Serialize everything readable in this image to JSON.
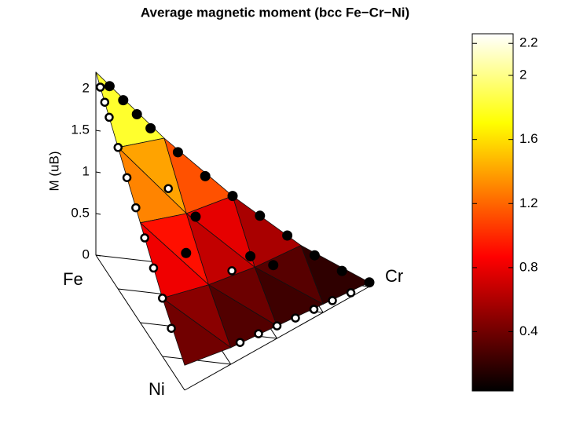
{
  "chart_data": {
    "type": "surface3d",
    "title": "Average magnetic moment (bcc Fe−Cr−Ni)",
    "zlabel": "M (uB)",
    "corner_labels": [
      "Fe",
      "Cr",
      "Ni"
    ],
    "zlim": [
      0,
      2.2
    ],
    "zticks": [
      0,
      0.5,
      1,
      1.5,
      2
    ],
    "clim": [
      0.03,
      2.26
    ],
    "cticks": [
      0.4,
      0.8,
      1.2,
      1.6,
      2,
      2.2
    ],
    "colormap": "hot",
    "surface": {
      "cr": [
        0,
        0.25,
        0.5,
        0.75,
        1
      ],
      "ni": [
        0,
        0.25,
        0.5,
        0.75,
        1
      ],
      "M": [
        [
          2.2,
          1.5,
          0.9,
          0.4,
          0.05
        ],
        [
          1.7,
          1.0,
          0.45,
          0.1
        ],
        [
          1.2,
          0.55,
          0.15
        ],
        [
          0.7,
          0.2
        ],
        [
          0.3
        ]
      ]
    },
    "points_filled": {
      "color": "#000000",
      "edge": "#000000",
      "values": [
        [
          0.05,
          0,
          2.05
        ],
        [
          0.1,
          0,
          1.9
        ],
        [
          0.15,
          0,
          1.75
        ],
        [
          0.2,
          0,
          1.6
        ],
        [
          0.3,
          0,
          1.35
        ],
        [
          0.4,
          0,
          1.1
        ],
        [
          0.5,
          0,
          0.9
        ],
        [
          0.6,
          0,
          0.7
        ],
        [
          0.7,
          0,
          0.5
        ],
        [
          0.8,
          0,
          0.3
        ],
        [
          0.9,
          0,
          0.15
        ],
        [
          1,
          0,
          0.05
        ],
        [
          0.3,
          0.2,
          0.9
        ],
        [
          0.5,
          0.2,
          0.5
        ],
        [
          0.2,
          0.4,
          0.75
        ],
        [
          0.6,
          0.15,
          0.35
        ]
      ]
    },
    "points_open": {
      "color": "#ffffff",
      "edge": "#000000",
      "values": [
        [
          0,
          0.05,
          2.1
        ],
        [
          0,
          0.1,
          2.0
        ],
        [
          0,
          0.15,
          1.9
        ],
        [
          0,
          0.25,
          1.7
        ],
        [
          0,
          0.35,
          1.5
        ],
        [
          0,
          0.45,
          1.3
        ],
        [
          0,
          0.55,
          1.1
        ],
        [
          0,
          0.65,
          0.9
        ],
        [
          0,
          0.75,
          0.7
        ],
        [
          0,
          0.85,
          0.5
        ],
        [
          0.9,
          0.1,
          0.05
        ],
        [
          0.8,
          0.2,
          0.08
        ],
        [
          0.7,
          0.3,
          0.1
        ],
        [
          0.6,
          0.4,
          0.12
        ],
        [
          0.5,
          0.5,
          0.15
        ],
        [
          0.4,
          0.6,
          0.18
        ],
        [
          0.3,
          0.7,
          0.2
        ],
        [
          0.2,
          0.2,
          1.2
        ],
        [
          0.4,
          0.3,
          0.45
        ]
      ]
    }
  }
}
